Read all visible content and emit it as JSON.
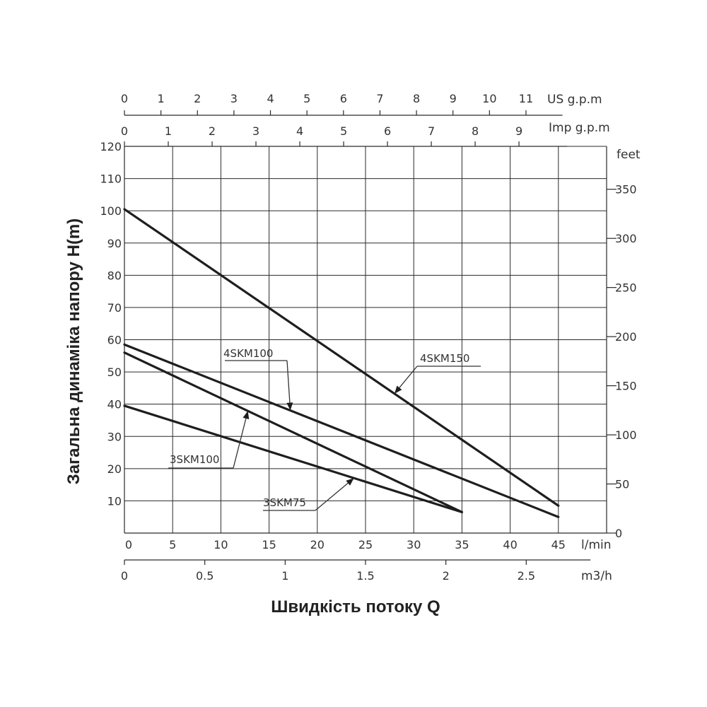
{
  "chart_data": {
    "type": "line",
    "ylabel": "Загальна динаміка напору H(m)",
    "xlabel": "Швидкість потоку Q",
    "x_unit": "l/min",
    "xlim": [
      0,
      50
    ],
    "ylim": [
      0,
      120
    ],
    "x_ticks": [
      0,
      5,
      10,
      15,
      20,
      25,
      30,
      35,
      40,
      45
    ],
    "y_ticks": [
      10,
      20,
      30,
      40,
      50,
      60,
      70,
      80,
      90,
      100,
      110,
      120
    ],
    "grid": true,
    "secondary_axes": {
      "us_gpm": {
        "label": "US g.p.m",
        "ticks": [
          0,
          1,
          2,
          3,
          4,
          5,
          6,
          7,
          8,
          9,
          10,
          11
        ]
      },
      "imp_gpm": {
        "label": "Imp g.p.m",
        "ticks": [
          0,
          1,
          2,
          3,
          4,
          5,
          6,
          7,
          8,
          9
        ]
      },
      "m3h": {
        "label": "m3/h",
        "ticks": [
          "0",
          "0.5",
          "1",
          "1.5",
          "2",
          "2.5"
        ],
        "values": [
          0,
          0.5,
          1,
          1.5,
          2,
          2.5
        ]
      },
      "feet": {
        "label": "feet",
        "ticks": [
          0,
          50,
          100,
          150,
          200,
          250,
          300,
          350
        ]
      }
    },
    "series": [
      {
        "name": "4SKM150",
        "x": [
          0,
          45
        ],
        "y": [
          100.5,
          8.5
        ]
      },
      {
        "name": "4SKM100",
        "x": [
          0,
          45
        ],
        "y": [
          58.5,
          5
        ]
      },
      {
        "name": "3SKM100",
        "x": [
          0,
          35
        ],
        "y": [
          56,
          6.5
        ]
      },
      {
        "name": "3SKM75",
        "x": [
          0,
          35
        ],
        "y": [
          39.5,
          6.5
        ]
      }
    ]
  }
}
